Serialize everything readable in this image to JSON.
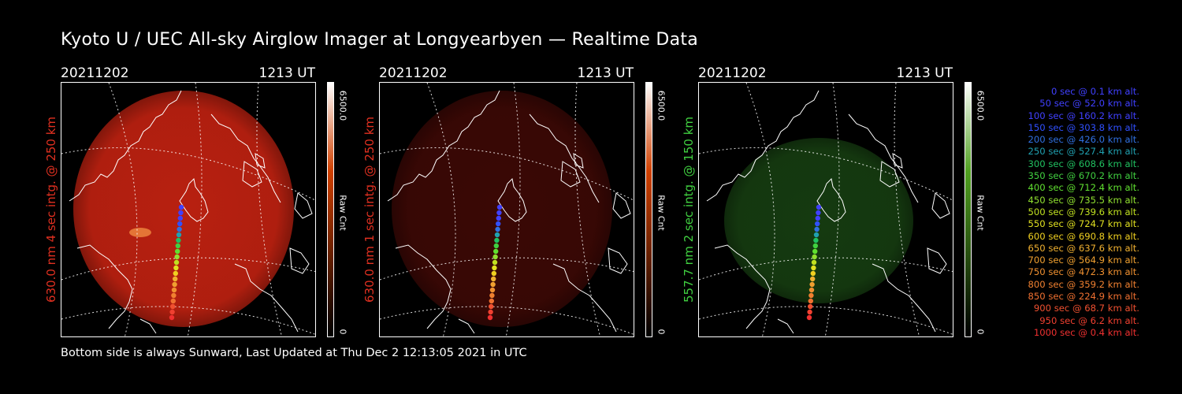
{
  "title": "Kyoto U / UEC All-sky Airglow Imager at Longyearbyen — Realtime Data",
  "footer": "Bottom side is always Sunward, Last Updated at Thu Dec  2 12:13:05 2021 in UTC",
  "panels": [
    {
      "date": "20211202",
      "time": "1213 UT",
      "side_label": "630.0 nm 4 sec intg. @ 250 km",
      "side_color": "#e03020",
      "image_tint": "#b82010",
      "colorbar_max": "6500.0",
      "colorbar_min": "0",
      "colorbar_title": "Raw Cnt",
      "colorbar_color": "#d04000"
    },
    {
      "date": "20211202",
      "time": "1213 UT",
      "side_label": "630.0 nm 1 sec intg. @ 250 km",
      "side_color": "#e03020",
      "image_tint": "#3a0805",
      "colorbar_max": "6500.0",
      "colorbar_min": "0",
      "colorbar_title": "Raw Cnt",
      "colorbar_color": "#d04000"
    },
    {
      "date": "20211202",
      "time": "1213 UT",
      "side_label": "557.7 nm 2 sec intg. @ 150 km",
      "side_color": "#40d040",
      "image_tint": "#153a10",
      "colorbar_max": "6500.0",
      "colorbar_min": "0",
      "colorbar_title": "Raw Cnt",
      "colorbar_color": "#50a020"
    }
  ],
  "legend": [
    {
      "text": "0 sec @   0.1 km alt.",
      "color": "#4040ff"
    },
    {
      "text": "50 sec @  52.0 km alt.",
      "color": "#4040ff"
    },
    {
      "text": "100 sec @ 160.2 km alt.",
      "color": "#4040ff"
    },
    {
      "text": "150 sec @ 303.8 km alt.",
      "color": "#3050ff"
    },
    {
      "text": "200 sec @ 426.0 km alt.",
      "color": "#3070e0"
    },
    {
      "text": "250 sec @ 527.4 km alt.",
      "color": "#20a0b0"
    },
    {
      "text": "300 sec @ 608.6 km alt.",
      "color": "#20c060"
    },
    {
      "text": "350 sec @ 670.2 km alt.",
      "color": "#40d040"
    },
    {
      "text": "400 sec @ 712.4 km alt.",
      "color": "#60e030"
    },
    {
      "text": "450 sec @ 735.5 km alt.",
      "color": "#90e030"
    },
    {
      "text": "500 sec @ 739.6 km alt.",
      "color": "#c0e020"
    },
    {
      "text": "550 sec @ 724.7 km alt.",
      "color": "#e0e020"
    },
    {
      "text": "600 sec @ 690.8 km alt.",
      "color": "#f0d020"
    },
    {
      "text": "650 sec @ 637.6 km alt.",
      "color": "#f0b030"
    },
    {
      "text": "700 sec @ 564.9 km alt.",
      "color": "#f0a030"
    },
    {
      "text": "750 sec @ 472.3 km alt.",
      "color": "#f09030"
    },
    {
      "text": "800 sec @ 359.2 km alt.",
      "color": "#f08030"
    },
    {
      "text": "850 sec @ 224.9 km alt.",
      "color": "#f07030"
    },
    {
      "text": "900 sec @  68.7 km alt.",
      "color": "#f05030"
    },
    {
      "text": "950 sec @   6.2 km alt.",
      "color": "#f04030"
    },
    {
      "text": "1000 sec @   0.4 km alt.",
      "color": "#f03030"
    }
  ]
}
